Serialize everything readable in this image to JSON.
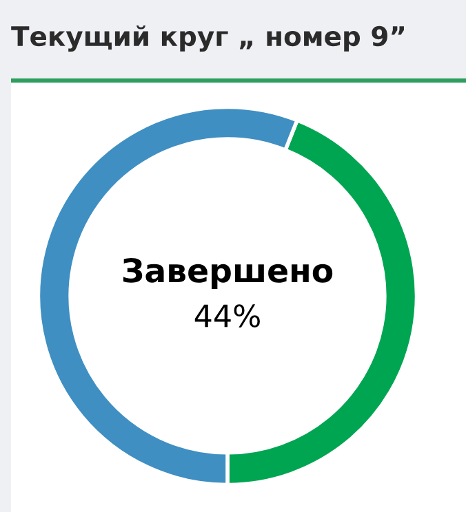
{
  "chart_data": {
    "type": "donut",
    "title": "Текущий круг „ номер 9”",
    "categories": [
      null,
      null
    ],
    "values": [
      44,
      56
    ],
    "colors": [
      "#00a551",
      "#3f8fc2"
    ],
    "annotations": [
      "Завершено",
      "44%"
    ],
    "legend": false
  }
}
